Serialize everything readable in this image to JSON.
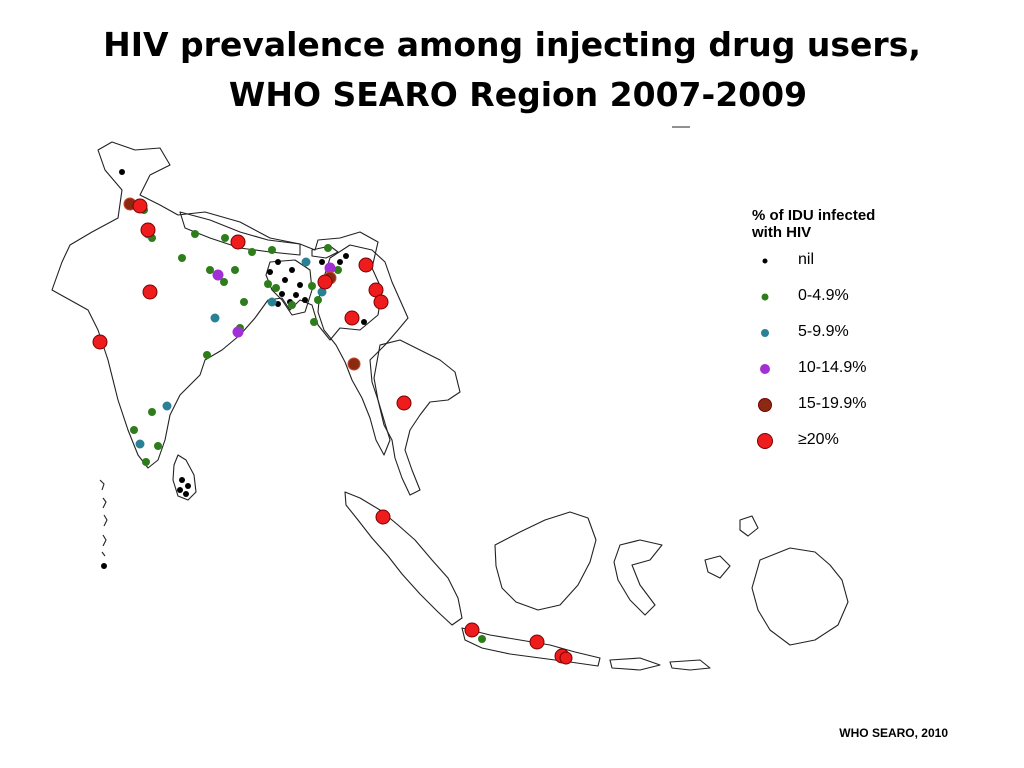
{
  "title": {
    "line1": "HIV prevalence among injecting drug users,",
    "line2": "WHO SEARO Region 2007-2009"
  },
  "legend": {
    "title_line1": "% of IDU infected",
    "title_line2": "with HIV",
    "items": [
      {
        "key": "nil",
        "label": "nil",
        "color": "#000000"
      },
      {
        "key": "0-4.9",
        "label": "0-4.9%",
        "color": "#2e7d1a"
      },
      {
        "key": "5-9.9",
        "label": "5-9.9%",
        "color": "#2a8196"
      },
      {
        "key": "10-14.9",
        "label": "10-14.9%",
        "color": "#a22fd6"
      },
      {
        "key": "15-19.9",
        "label": "15-19.9%",
        "color": "#8b2a12"
      },
      {
        "key": "20",
        "label": "≥20%",
        "color": "#ee1c1c"
      }
    ]
  },
  "source": "WHO SEARO, 2010"
}
